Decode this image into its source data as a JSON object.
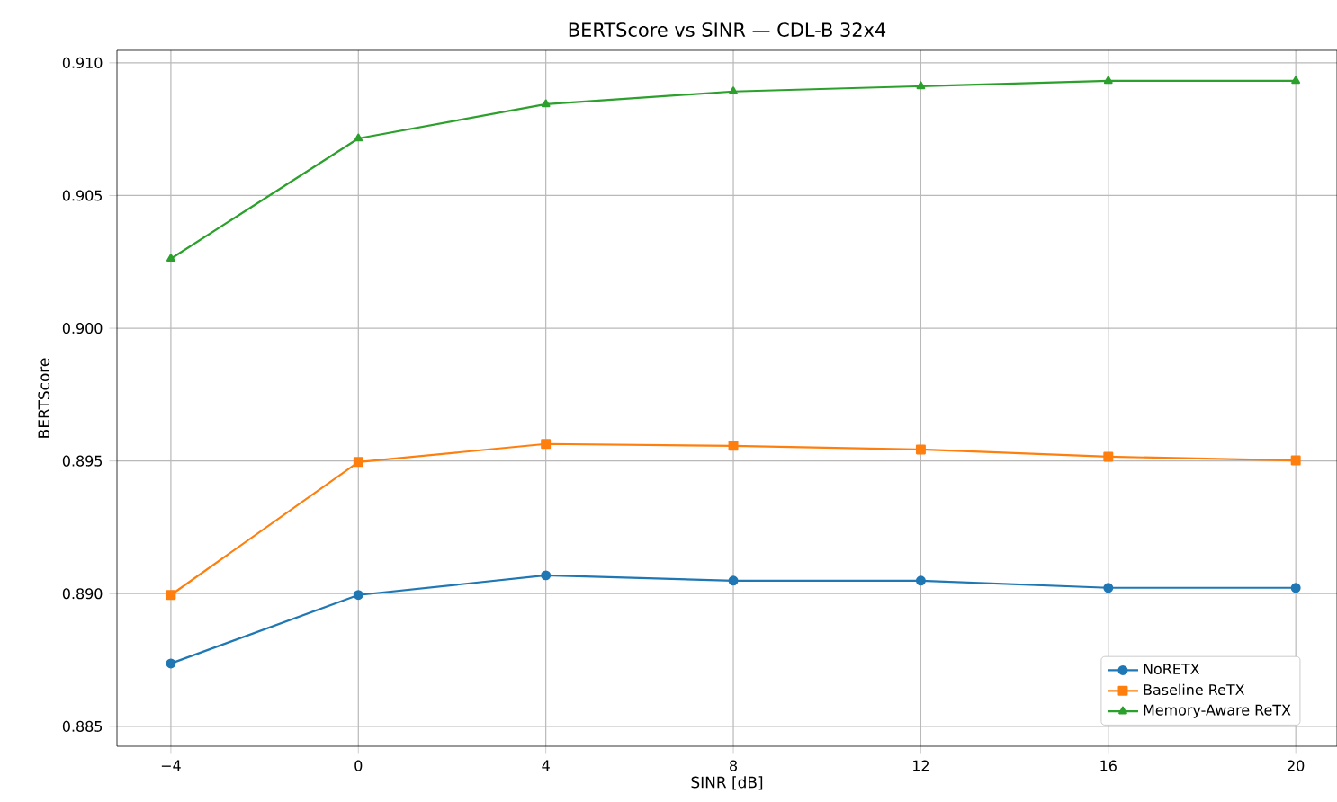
{
  "chart_data": {
    "type": "line",
    "title": "BERTScore vs SINR — CDL-B 32x4",
    "xlabel": "SINR [dB]",
    "ylabel": "BERTScore",
    "x": [
      -4,
      0,
      4,
      8,
      12,
      16,
      20
    ],
    "series": [
      {
        "name": "NoRETX",
        "color": "#1f77b4",
        "marker": "circle",
        "values": [
          0.88737,
          0.88995,
          0.89069,
          0.89049,
          0.89049,
          0.89022,
          0.89022
        ]
      },
      {
        "name": "Baseline ReTX",
        "color": "#ff7f0e",
        "marker": "square",
        "values": [
          0.88995,
          0.89496,
          0.89564,
          0.89557,
          0.89543,
          0.89516,
          0.89502
        ]
      },
      {
        "name": "Memory-Aware ReTX",
        "color": "#2ca02c",
        "marker": "triangle",
        "values": [
          0.90262,
          0.90715,
          0.90844,
          0.90892,
          0.90912,
          0.90932,
          0.90932
        ]
      }
    ],
    "xlim": [
      -5.15,
      20.88
    ],
    "ylim": [
      0.88425,
      0.91047
    ],
    "xticks": [
      {
        "value": -4,
        "label": "−4"
      },
      0,
      4,
      8,
      12,
      16,
      20
    ],
    "yticks": [
      {
        "value": 0.885,
        "label": "0.885"
      },
      {
        "value": 0.89,
        "label": "0.890"
      },
      {
        "value": 0.895,
        "label": "0.895"
      },
      {
        "value": 0.9,
        "label": "0.900"
      },
      {
        "value": 0.905,
        "label": "0.905"
      },
      {
        "value": 0.91,
        "label": "0.910"
      }
    ],
    "grid": true,
    "legend": "bottom right",
    "line_style": "solid"
  }
}
